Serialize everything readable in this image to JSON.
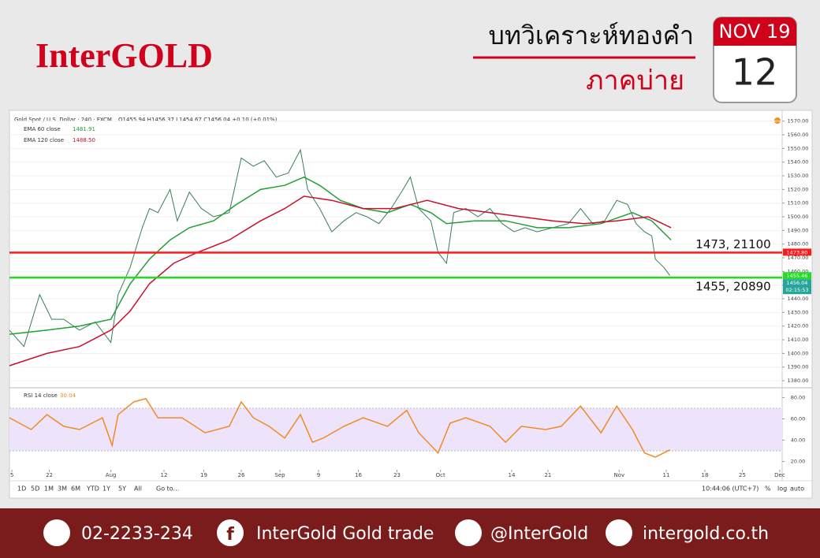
{
  "header": {
    "logo": "InterGOLD",
    "title": "บทวิเคราะห์ทองคำ",
    "subtitle": "ภาคบ่าย",
    "calendar": {
      "month": "NOV 19",
      "day": "12"
    }
  },
  "chart_data": [
    {
      "type": "line",
      "title": "Gold Spot / U.S. Dollar · 240 · FXCM",
      "subtitle": "O1455.94 H1456.37 L1454.67 C1456.04 +0.10 (+0.01%)",
      "xlim": [
        0,
        640
      ],
      "ylim": [
        1376,
        1575
      ],
      "grid": true,
      "yticks": [
        {
          "value": 1380,
          "label": "1380.00"
        },
        {
          "value": 1390,
          "label": "1390.00"
        },
        {
          "value": 1400,
          "label": "1400.00"
        },
        {
          "value": 1410,
          "label": "1410.00"
        },
        {
          "value": 1420,
          "label": "1420.00"
        },
        {
          "value": 1430,
          "label": "1430.00"
        },
        {
          "value": 1440,
          "label": "1440.00"
        },
        {
          "value": 1450,
          "label": "1450.00"
        },
        {
          "value": 1460,
          "label": "1460.00"
        },
        {
          "value": 1470,
          "label": "1470.00"
        },
        {
          "value": 1480,
          "label": "1480.00"
        },
        {
          "value": 1490,
          "label": "1490.00"
        },
        {
          "value": 1500,
          "label": "1500.00"
        },
        {
          "value": 1510,
          "label": "1510.00"
        },
        {
          "value": 1520,
          "label": "1520.00"
        },
        {
          "value": 1530,
          "label": "1530.00"
        },
        {
          "value": 1540,
          "label": "1540.00"
        },
        {
          "value": 1550,
          "label": "1550.00"
        },
        {
          "value": 1560,
          "label": "1560.00"
        },
        {
          "value": 1570,
          "label": "1570.00"
        }
      ],
      "series": [
        {
          "color": "#3a7d5a",
          "x": [
            0,
            12,
            25,
            35,
            45,
            58,
            71,
            84,
            90,
            100,
            110,
            116,
            123,
            133,
            139,
            149,
            159,
            169,
            182,
            192,
            202,
            211,
            221,
            231,
            241,
            247,
            257,
            267,
            277,
            287,
            296,
            306,
            316,
            326,
            332,
            339,
            349,
            355,
            362,
            368,
            378,
            388,
            398,
            408,
            418,
            427,
            437,
            450,
            463,
            473,
            483,
            493,
            503,
            512,
            519,
            526,
            532,
            535,
            542,
            547
          ],
          "values": [
            1417,
            1405,
            1443,
            1425,
            1425,
            1417,
            1423,
            1408,
            1443,
            1463,
            1492,
            1506,
            1503,
            1520,
            1497,
            1518,
            1506,
            1500,
            1503,
            1543,
            1537,
            1541,
            1529,
            1532,
            1549,
            1520,
            1506,
            1489,
            1497,
            1503,
            1500,
            1495,
            1506,
            1520,
            1529,
            1506,
            1497,
            1474,
            1466,
            1503,
            1506,
            1500,
            1506,
            1495,
            1489,
            1492,
            1489,
            1492,
            1495,
            1506,
            1495,
            1497,
            1512,
            1509,
            1495,
            1489,
            1486,
            1469,
            1463,
            1457
          ]
        },
        {
          "name": "EMA 60 close",
          "last_label": "1481.91",
          "color": "#22a033",
          "x": [
            0,
            31,
            58,
            84,
            100,
            116,
            133,
            149,
            169,
            188,
            208,
            228,
            244,
            257,
            274,
            293,
            313,
            332,
            349,
            362,
            385,
            411,
            437,
            463,
            490,
            516,
            532,
            548
          ],
          "values": [
            1414,
            1417,
            1420,
            1425,
            1451,
            1469,
            1483,
            1492,
            1497,
            1509,
            1520,
            1523,
            1529,
            1523,
            1512,
            1506,
            1503,
            1509,
            1503,
            1495,
            1497,
            1497,
            1492,
            1492,
            1495,
            1503,
            1497,
            1483
          ]
        },
        {
          "name": "EMA 120 close",
          "last_label": "1488.50",
          "color": "#c8102e",
          "x": [
            0,
            31,
            58,
            84,
            100,
            116,
            136,
            156,
            182,
            208,
            228,
            244,
            267,
            293,
            319,
            346,
            372,
            398,
            424,
            450,
            476,
            503,
            529,
            548
          ],
          "values": [
            1391,
            1400,
            1405,
            1417,
            1431,
            1451,
            1466,
            1474,
            1483,
            1497,
            1506,
            1515,
            1512,
            1506,
            1506,
            1512,
            1506,
            1503,
            1500,
            1497,
            1495,
            1497,
            1500,
            1492
          ]
        }
      ],
      "levels": [
        {
          "value": 1473.8,
          "tag": "1473.80",
          "label": "1473, 21100",
          "color": "#ff1a1a"
        },
        {
          "value": 1455.46,
          "tag": "1455.46",
          "label": "1455, 20890",
          "color": "#22dd22"
        }
      ],
      "last_price": {
        "value": 1456.04,
        "countdown": "02:15:53",
        "color": "#26a69a"
      }
    },
    {
      "type": "line",
      "xlim": [
        0,
        640
      ],
      "ylim": [
        13,
        87
      ],
      "band": [
        30,
        70
      ],
      "yticks": [
        {
          "value": 80,
          "label": "80.00"
        },
        {
          "value": 60,
          "label": "60.00"
        },
        {
          "value": 40,
          "label": "40.00"
        },
        {
          "value": 20,
          "label": "20.00"
        }
      ],
      "xticks": [
        {
          "value": 2,
          "label": "5"
        },
        {
          "value": 33,
          "label": "22"
        },
        {
          "value": 84,
          "label": "Aug"
        },
        {
          "value": 128,
          "label": "12"
        },
        {
          "value": 161,
          "label": "19"
        },
        {
          "value": 192,
          "label": "26"
        },
        {
          "value": 224,
          "label": "Sep"
        },
        {
          "value": 256,
          "label": "9"
        },
        {
          "value": 289,
          "label": "16"
        },
        {
          "value": 321,
          "label": "23"
        },
        {
          "value": 357,
          "label": "Oct"
        },
        {
          "value": 416,
          "label": "14"
        },
        {
          "value": 446,
          "label": "21"
        },
        {
          "value": 505,
          "label": "Nov"
        },
        {
          "value": 544,
          "label": "11"
        },
        {
          "value": 576,
          "label": "18"
        },
        {
          "value": 607,
          "label": "25"
        },
        {
          "value": 638,
          "label": "Dec"
        }
      ],
      "series": [
        {
          "name": "RSI 14 close",
          "last_label": "30.04",
          "color": "#f08a24",
          "x": [
            0,
            18,
            31,
            45,
            58,
            77,
            85,
            90,
            103,
            113,
            123,
            143,
            162,
            182,
            192,
            202,
            215,
            228,
            241,
            251,
            260,
            277,
            293,
            313,
            329,
            339,
            355,
            365,
            378,
            398,
            411,
            424,
            444,
            457,
            473,
            490,
            503,
            516,
            526,
            535,
            547
          ],
          "values": [
            61,
            50,
            64,
            53,
            50,
            61,
            35,
            64,
            76,
            79,
            61,
            61,
            47,
            53,
            76,
            61,
            53,
            42,
            64,
            38,
            42,
            53,
            61,
            53,
            68,
            47,
            28,
            56,
            61,
            53,
            38,
            53,
            50,
            53,
            72,
            47,
            72,
            50,
            28,
            24,
            31
          ]
        }
      ]
    }
  ],
  "toolbar": {
    "ranges": [
      "1D",
      "5D",
      "1M",
      "3M",
      "6M",
      "YTD",
      "1Y",
      "5Y",
      "All",
      "Go to..."
    ],
    "time": "10:44:06 (UTC+7)",
    "options": [
      "%",
      "log",
      "auto"
    ]
  },
  "footer": {
    "phone": "02-2233-234",
    "facebook": "InterGold Gold trade",
    "line": "@InterGold",
    "web": "intergold.co.th"
  }
}
